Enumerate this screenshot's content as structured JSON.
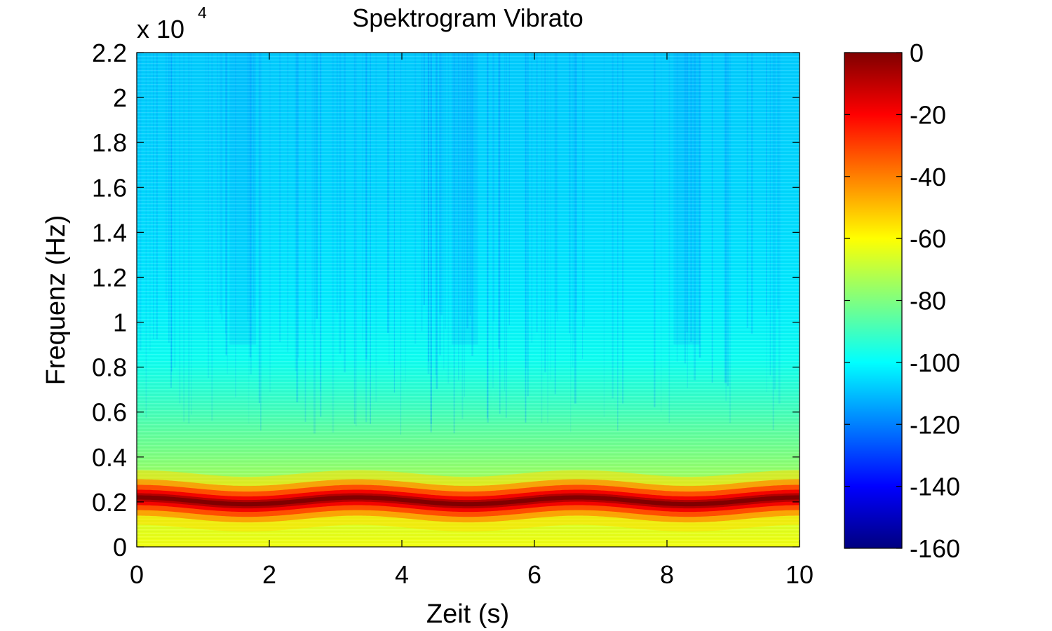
{
  "chart_data": {
    "type": "heatmap",
    "title": "Spektrogram Vibrato",
    "xlabel": "Zeit (s)",
    "ylabel": "Frequenz (Hz)",
    "y_exponent_label": "x 10",
    "y_exponent": "4",
    "xlim": [
      0,
      10
    ],
    "ylim": [
      0,
      22000
    ],
    "x_ticks": [
      0,
      2,
      4,
      6,
      8,
      10
    ],
    "x_tick_labels": [
      "0",
      "2",
      "4",
      "6",
      "8",
      "10"
    ],
    "y_ticks": [
      0,
      2000,
      4000,
      6000,
      8000,
      10000,
      12000,
      14000,
      16000,
      18000,
      20000,
      22000
    ],
    "y_tick_labels": [
      "0",
      "0.2",
      "0.4",
      "0.6",
      "0.8",
      "1",
      "1.2",
      "1.4",
      "1.6",
      "1.8",
      "2",
      "2.2"
    ],
    "colorbar": {
      "colormap": "jet",
      "clim": [
        -160,
        0
      ],
      "ticks": [
        0,
        -20,
        -40,
        -60,
        -80,
        -100,
        -120,
        -140,
        -160
      ],
      "tick_labels": [
        "0",
        "-20",
        "-40",
        "-60",
        "-80",
        "-100",
        "-120",
        "-140",
        "-160"
      ]
    },
    "vibrato": {
      "center_hz": 2050,
      "depth_hz": 150,
      "period_s": 3.33,
      "peak_level_db": 0
    },
    "background_level_db": {
      "low_freq": -65,
      "mid_freq": -90,
      "high_freq": -105
    },
    "grid": false,
    "legend": "none"
  }
}
